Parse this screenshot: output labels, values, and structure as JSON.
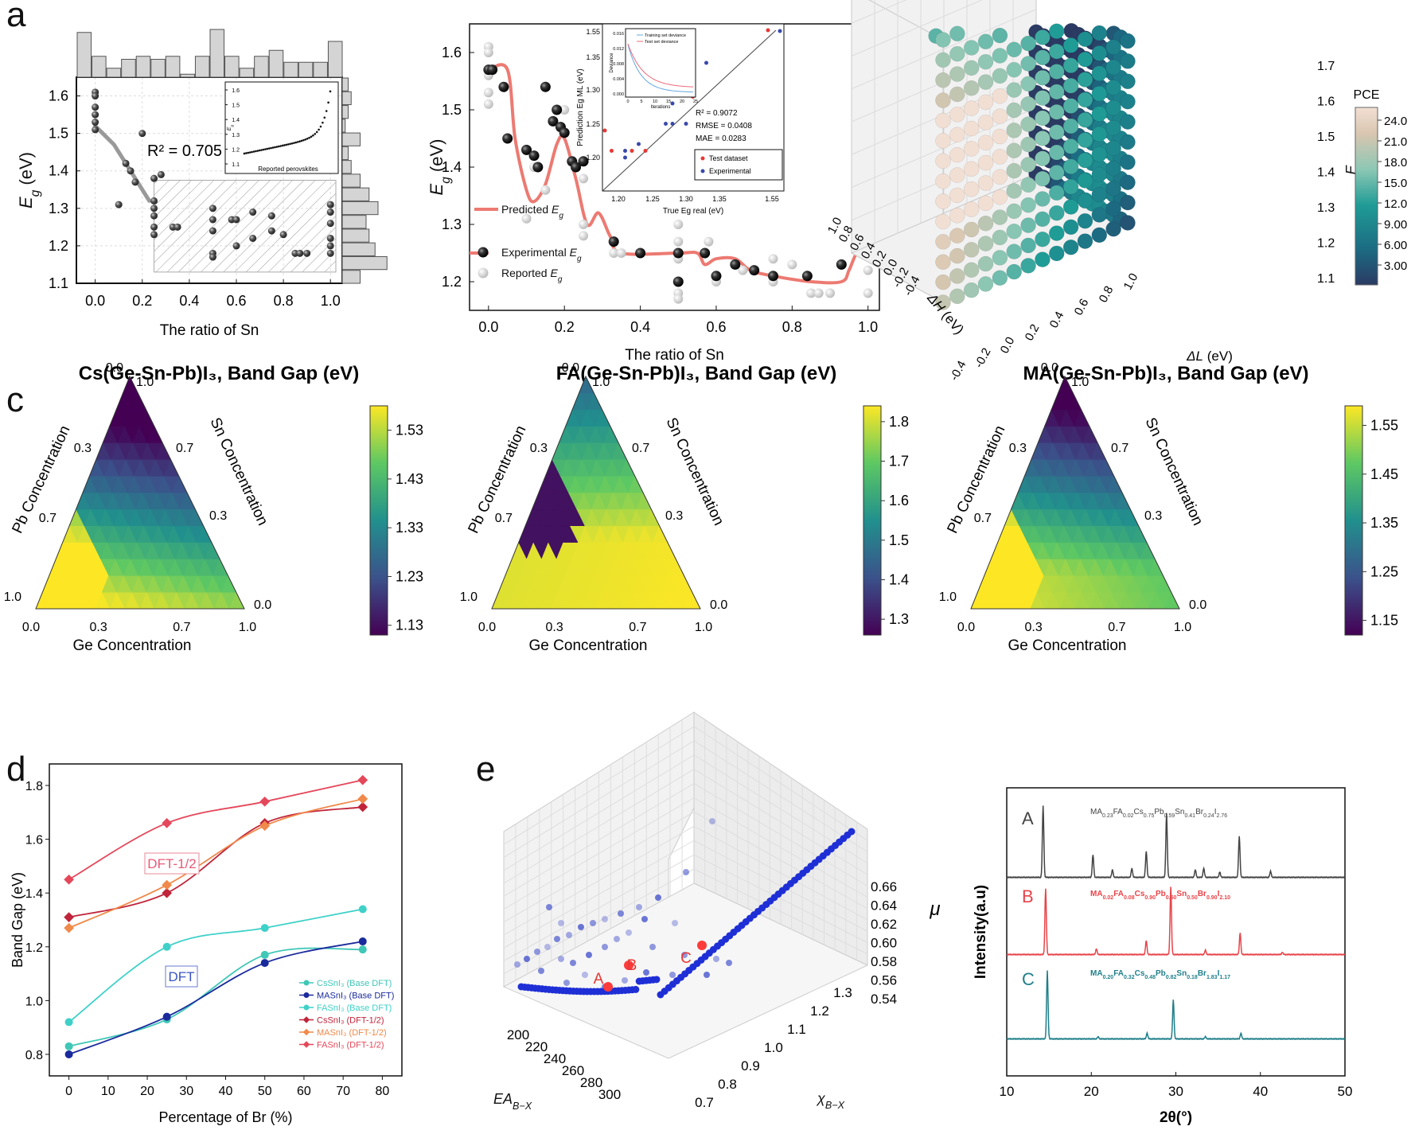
{
  "panel_labels": {
    "a": "a",
    "b": "b",
    "c": "c",
    "d": "d",
    "e": "e"
  },
  "colors": {
    "accent_red": "#e8736b",
    "scatter_gray": "#cfcfcf",
    "hist_fill": "#d4d4d4",
    "viridis": [
      "#440154",
      "#3b528b",
      "#21908d",
      "#5dc863",
      "#fde725"
    ],
    "pce_colormap": [
      "#2b3a63",
      "#1c6b82",
      "#1f9c96",
      "#8cc7b4",
      "#d8c6b0",
      "#f2dfd3"
    ]
  },
  "chart_data": [
    {
      "id": "a1",
      "type": "scatter",
      "xlabel": "The ratio of Sn",
      "ylabel": "E_g (eV)",
      "xlim": [
        -0.08,
        1.05
      ],
      "ylim": [
        1.1,
        1.65
      ],
      "xticks": [
        "0.0",
        "0.2",
        "0.4",
        "0.6",
        "0.8",
        "1.0"
      ],
      "yticks": [
        "1.1",
        "1.2",
        "1.3",
        "1.4",
        "1.5",
        "1.6"
      ],
      "annotation": "R² = 0.705",
      "points": [
        [
          0,
          1.61
        ],
        [
          0,
          1.6
        ],
        [
          0,
          1.57
        ],
        [
          0,
          1.55
        ],
        [
          0,
          1.53
        ],
        [
          0,
          1.51
        ],
        [
          0.1,
          1.31
        ],
        [
          0.13,
          1.42
        ],
        [
          0.15,
          1.4
        ],
        [
          0.17,
          1.37
        ],
        [
          0.2,
          1.5
        ],
        [
          0.25,
          1.38
        ],
        [
          0.25,
          1.32
        ],
        [
          0.25,
          1.3
        ],
        [
          0.25,
          1.28
        ],
        [
          0.25,
          1.25
        ],
        [
          0.25,
          1.23
        ],
        [
          0.28,
          1.39
        ],
        [
          0.33,
          1.25
        ],
        [
          0.35,
          1.25
        ],
        [
          0.5,
          1.3
        ],
        [
          0.5,
          1.27
        ],
        [
          0.5,
          1.24
        ],
        [
          0.5,
          1.18
        ],
        [
          0.5,
          1.17
        ],
        [
          0.58,
          1.27
        ],
        [
          0.6,
          1.27
        ],
        [
          0.6,
          1.2
        ],
        [
          0.67,
          1.29
        ],
        [
          0.67,
          1.22
        ],
        [
          0.75,
          1.28
        ],
        [
          0.75,
          1.24
        ],
        [
          0.8,
          1.23
        ],
        [
          0.85,
          1.18
        ],
        [
          0.87,
          1.18
        ],
        [
          0.9,
          1.18
        ],
        [
          1.0,
          1.31
        ],
        [
          1.0,
          1.29
        ],
        [
          1.0,
          1.26
        ],
        [
          1.0,
          1.22
        ],
        [
          1.0,
          1.2
        ],
        [
          1.0,
          1.18
        ]
      ],
      "fit_line": [
        [
          0,
          1.52
        ],
        [
          0.08,
          1.47
        ],
        [
          0.15,
          1.4
        ],
        [
          0.23,
          1.32
        ]
      ],
      "top_hist": [
        0.75,
        0.35,
        0.15,
        0.3,
        0.35,
        0.3,
        0.35,
        0.05,
        0.35,
        0.8,
        0.35,
        0.15,
        0.35,
        0.45,
        0.25,
        0.25,
        0.25,
        0.6
      ],
      "side_hist": [
        0.1,
        0.15,
        0.1,
        0.05,
        0.3,
        0.1,
        0.15,
        0.3,
        0.45,
        0.6,
        0.4,
        0.45,
        0.55,
        0.75,
        0.3
      ],
      "inset": {
        "xlabel": "Reported perovskites",
        "ylabel": "E_g (eV)",
        "yticks": [
          "1.1",
          "1.2",
          "1.3",
          "1.4",
          "1.5",
          "1.6"
        ],
        "points_count": 46
      }
    },
    {
      "id": "a2",
      "type": "line",
      "xlabel": "The ratio of Sn",
      "ylabel": "E_g (eV)",
      "xlim": [
        -0.05,
        1.03
      ],
      "ylim": [
        1.15,
        1.65
      ],
      "xticks": [
        "0.0",
        "0.2",
        "0.4",
        "0.6",
        "0.8",
        "1.0"
      ],
      "yticks": [
        "1.2",
        "1.3",
        "1.4",
        "1.5",
        "1.6"
      ],
      "legend": [
        "Predicted E_g",
        "Experimental E_g",
        "Reported E_g"
      ],
      "predicted": [
        [
          0,
          1.57
        ],
        [
          0.05,
          1.57
        ],
        [
          0.07,
          1.45
        ],
        [
          0.1,
          1.36
        ],
        [
          0.12,
          1.34
        ],
        [
          0.15,
          1.37
        ],
        [
          0.18,
          1.44
        ],
        [
          0.2,
          1.45
        ],
        [
          0.23,
          1.38
        ],
        [
          0.26,
          1.3
        ],
        [
          0.29,
          1.32
        ],
        [
          0.32,
          1.28
        ],
        [
          0.35,
          1.25
        ],
        [
          0.5,
          1.25
        ],
        [
          0.55,
          1.25
        ],
        [
          0.57,
          1.23
        ],
        [
          0.6,
          1.24
        ],
        [
          0.65,
          1.24
        ],
        [
          0.69,
          1.22
        ],
        [
          0.75,
          1.21
        ],
        [
          0.85,
          1.2
        ],
        [
          0.93,
          1.2
        ],
        [
          0.95,
          1.22
        ],
        [
          0.97,
          1.25
        ],
        [
          1.0,
          1.27
        ]
      ],
      "experimental": [
        [
          0,
          1.57
        ],
        [
          0.01,
          1.57
        ],
        [
          0.04,
          1.54
        ],
        [
          0.05,
          1.45
        ],
        [
          0.1,
          1.43
        ],
        [
          0.12,
          1.42
        ],
        [
          0.13,
          1.4
        ],
        [
          0.15,
          1.54
        ],
        [
          0.17,
          1.48
        ],
        [
          0.18,
          1.5
        ],
        [
          0.19,
          1.47
        ],
        [
          0.2,
          1.46
        ],
        [
          0.22,
          1.41
        ],
        [
          0.23,
          1.4
        ],
        [
          0.25,
          1.41
        ],
        [
          0.33,
          1.27
        ],
        [
          0.4,
          1.25
        ],
        [
          0.5,
          1.25
        ],
        [
          0.5,
          1.2
        ],
        [
          0.57,
          1.25
        ],
        [
          0.6,
          1.21
        ],
        [
          0.65,
          1.23
        ],
        [
          0.7,
          1.22
        ],
        [
          0.75,
          1.21
        ],
        [
          0.84,
          1.21
        ],
        [
          0.93,
          1.23
        ],
        [
          1.0,
          1.28
        ]
      ],
      "reported": [
        [
          0,
          1.61
        ],
        [
          0,
          1.6
        ],
        [
          0,
          1.56
        ],
        [
          0,
          1.53
        ],
        [
          0,
          1.51
        ],
        [
          0.1,
          1.31
        ],
        [
          0.12,
          1.4
        ],
        [
          0.15,
          1.36
        ],
        [
          0.2,
          1.5
        ],
        [
          0.25,
          1.38
        ],
        [
          0.25,
          1.3
        ],
        [
          0.25,
          1.28
        ],
        [
          0.33,
          1.25
        ],
        [
          0.35,
          1.25
        ],
        [
          0.5,
          1.3
        ],
        [
          0.5,
          1.27
        ],
        [
          0.5,
          1.24
        ],
        [
          0.5,
          1.18
        ],
        [
          0.5,
          1.17
        ],
        [
          0.58,
          1.27
        ],
        [
          0.6,
          1.2
        ],
        [
          0.67,
          1.22
        ],
        [
          0.75,
          1.24
        ],
        [
          0.75,
          1.2
        ],
        [
          0.8,
          1.23
        ],
        [
          0.85,
          1.18
        ],
        [
          0.87,
          1.18
        ],
        [
          0.9,
          1.18
        ],
        [
          1.0,
          1.31
        ],
        [
          1.0,
          1.26
        ],
        [
          1.0,
          1.22
        ],
        [
          1.0,
          1.18
        ]
      ],
      "inset": {
        "xlabel": "True E_g^real (eV)",
        "ylabel": "Prediction E_g^ML (eV)",
        "xticks": [
          "1.20",
          "1.25",
          "1.30",
          "1.35",
          "1.55"
        ],
        "yticks": [
          "1.20",
          "1.25",
          "1.30",
          "1.35",
          "1.55"
        ],
        "stats": [
          "R² = 0.9072",
          "RMSE = 0.0408",
          "MAE = 0.0283"
        ],
        "legend": [
          "Test dataset",
          "Experimental"
        ],
        "test_points": [
          [
            1.18,
            1.24
          ],
          [
            1.19,
            1.21
          ],
          [
            1.22,
            1.21
          ],
          [
            1.24,
            1.21
          ],
          [
            1.31,
            1.29
          ],
          [
            1.55,
            1.55
          ]
        ],
        "exp_points": [
          [
            1.21,
            1.2
          ],
          [
            1.21,
            1.21
          ],
          [
            1.23,
            1.22
          ],
          [
            1.27,
            1.25
          ],
          [
            1.28,
            1.25
          ],
          [
            1.28,
            1.28
          ],
          [
            1.3,
            1.25
          ],
          [
            1.3,
            1.31
          ],
          [
            1.33,
            1.34
          ],
          [
            1.57,
            1.55
          ]
        ],
        "sub_inset": {
          "legend": [
            "Training set deviance",
            "Test set deviance"
          ],
          "xlabel": "Iterations",
          "ylabel": "Deviance",
          "yticks": [
            "0.000",
            "0.004",
            "0.008",
            "0.012",
            "0.016"
          ],
          "xticks": [
            "0",
            "5",
            "10",
            "15",
            "20",
            "25"
          ]
        }
      }
    },
    {
      "id": "b",
      "type": "scatter",
      "zlabel": "E_g",
      "xlabel": "ΔL (eV)",
      "ylabel": "ΔH (eV)",
      "zticks": [
        "1.1",
        "1.2",
        "1.3",
        "1.4",
        "1.5",
        "1.6",
        "1.7"
      ],
      "xticks": [
        "-0.4",
        "-0.2",
        "0.0",
        "0.2",
        "0.4",
        "0.6",
        "0.8",
        "1.0"
      ],
      "yticks": [
        "-0.4",
        "-0.2",
        "0.0",
        "0.2",
        "0.4",
        "0.6",
        "0.8",
        "1.0"
      ],
      "colorbar": {
        "title": "PCE",
        "ticks": [
          "24.0",
          "21.0",
          "18.0",
          "15.0",
          "12.0",
          "9.00",
          "6.00",
          "3.00"
        ]
      }
    },
    {
      "id": "c1",
      "type": "heatmap",
      "title": "Cs(Ge-Sn-Pb)I₃, Band Gap (eV)",
      "axes": {
        "left": "Pb Concentration",
        "right": "Sn Concentration",
        "bottom": "Ge Concentration"
      },
      "ticks_bottom": [
        "0.0",
        "0.3",
        "0.7",
        "1.0"
      ],
      "ticks_left": [
        "0.0",
        "0.3",
        "0.7",
        "1.0"
      ],
      "ticks_right": [
        "1.0",
        "0.7",
        "0.3",
        "0.0"
      ],
      "colorbar": [
        "1.53",
        "1.43",
        "1.33",
        "1.23",
        "1.13"
      ],
      "vmin": 1.11,
      "vmax": 1.58
    },
    {
      "id": "c2",
      "type": "heatmap",
      "title": "FA(Ge-Sn-Pb)I₃, Band Gap (eV)",
      "axes": {
        "left": "Pb Concentration",
        "right": "Sn Concentration",
        "bottom": "Ge Concentration"
      },
      "ticks_bottom": [
        "0.0",
        "0.3",
        "0.7",
        "1.0"
      ],
      "ticks_left": [
        "0.0",
        "0.3",
        "0.7",
        "1.0"
      ],
      "ticks_right": [
        "1.0",
        "0.7",
        "0.3",
        "0.0"
      ],
      "colorbar": [
        "1.8",
        "1.7",
        "1.6",
        "1.5",
        "1.4",
        "1.3"
      ],
      "vmin": 1.26,
      "vmax": 1.84
    },
    {
      "id": "c3",
      "type": "heatmap",
      "title": "MA(Ge-Sn-Pb)I₃, Band Gap (eV)",
      "axes": {
        "left": "Pb Concentration",
        "right": "Sn Concentration",
        "bottom": "Ge Concentration"
      },
      "ticks_bottom": [
        "0.0",
        "0.3",
        "0.7",
        "1.0"
      ],
      "ticks_left": [
        "0.0",
        "0.3",
        "0.7",
        "1.0"
      ],
      "ticks_right": [
        "1.0",
        "0.7",
        "0.3",
        "0.0"
      ],
      "colorbar": [
        "1.55",
        "1.45",
        "1.35",
        "1.25",
        "1.15"
      ],
      "vmin": 1.12,
      "vmax": 1.59
    },
    {
      "id": "d",
      "type": "line",
      "xlabel": "Percentage of Br (%)",
      "ylabel": "Band Gap (eV)",
      "xlim": [
        -5,
        85
      ],
      "ylim": [
        0.72,
        1.88
      ],
      "xticks": [
        "0",
        "10",
        "20",
        "30",
        "40",
        "50",
        "60",
        "70",
        "80"
      ],
      "yticks": [
        "0.8",
        "1.0",
        "1.2",
        "1.4",
        "1.6",
        "1.8"
      ],
      "annotations": [
        "DFT-1/2",
        "DFT"
      ],
      "x": [
        0,
        25,
        50,
        75
      ],
      "series": [
        {
          "name": "CsSnI₃ (Base DFT)",
          "color": "#3fc7b7",
          "marker": "circle",
          "values": [
            0.83,
            0.93,
            1.17,
            1.19
          ]
        },
        {
          "name": "MASnI₃ (Base DFT)",
          "color": "#1a2a9c",
          "marker": "circle",
          "values": [
            0.8,
            0.94,
            1.14,
            1.22
          ]
        },
        {
          "name": "FASnI₃ (Base DFT)",
          "color": "#3fd1c8",
          "marker": "circle",
          "values": [
            0.92,
            1.2,
            1.27,
            1.34
          ]
        },
        {
          "name": "CsSnI₃ (DFT-1/2)",
          "color": "#c0243a",
          "marker": "diamond",
          "values": [
            1.31,
            1.4,
            1.66,
            1.72
          ]
        },
        {
          "name": "MASnI₃ (DFT-1/2)",
          "color": "#f0894a",
          "marker": "diamond",
          "values": [
            1.27,
            1.43,
            1.65,
            1.75
          ]
        },
        {
          "name": "FASnI₃ (DFT-1/2)",
          "color": "#e5475a",
          "marker": "diamond",
          "values": [
            1.45,
            1.66,
            1.74,
            1.82
          ]
        }
      ]
    },
    {
      "id": "e1",
      "type": "scatter",
      "xlabel": "EA_{B−X}",
      "ylabel": "χ_{B−X}",
      "zlabel": "μ",
      "xticks": [
        "200",
        "220",
        "240",
        "260",
        "280",
        "300"
      ],
      "yticks": [
        "0.7",
        "0.8",
        "0.9",
        "1.0",
        "1.1",
        "1.2",
        "1.3"
      ],
      "zticks": [
        "0.54",
        "0.56",
        "0.58",
        "0.60",
        "0.62",
        "0.64",
        "0.66"
      ],
      "labels": [
        "A",
        "B",
        "C"
      ]
    },
    {
      "id": "e2",
      "type": "line",
      "xlabel": "2θ(°)",
      "ylabel": "Intensity(a.u)",
      "xlim": [
        10,
        50
      ],
      "xticks": [
        "10",
        "20",
        "30",
        "40",
        "50"
      ],
      "series": [
        {
          "name": "A",
          "color": "#444444",
          "formula": [
            "MA",
            "0.23",
            "FA",
            "0.02",
            "Cs",
            "0.75",
            "Pb",
            "0.59",
            "Sn",
            "0.41",
            "Br",
            "0.24",
            "I",
            "2.76"
          ],
          "peaks": [
            [
              14.3,
              0.95
            ],
            [
              20.2,
              0.3
            ],
            [
              22.5,
              0.1
            ],
            [
              24.8,
              0.12
            ],
            [
              26.5,
              0.35
            ],
            [
              28.9,
              0.85
            ],
            [
              32.3,
              0.1
            ],
            [
              33.3,
              0.12
            ],
            [
              35.2,
              0.07
            ],
            [
              37.5,
              0.55
            ],
            [
              41.2,
              0.08
            ]
          ]
        },
        {
          "name": "B",
          "color": "#e8444a",
          "formula": [
            "MA",
            "0.02",
            "FA",
            "0.08",
            "Cs",
            "0.90",
            "Pb",
            "0.50",
            "Sn",
            "0.50",
            "Br",
            "0.90",
            "I",
            "2.10"
          ],
          "peaks": [
            [
              14.6,
              0.92
            ],
            [
              20.6,
              0.08
            ],
            [
              26.5,
              0.2
            ],
            [
              29.4,
              0.95
            ],
            [
              33.5,
              0.06
            ],
            [
              37.6,
              0.3
            ],
            [
              42.6,
              0.03
            ]
          ]
        },
        {
          "name": "C",
          "color": "#1f7f8a",
          "formula": [
            "MA",
            "0.20",
            "FA",
            "0.32",
            "Cs",
            "0.48",
            "Pb",
            "0.82",
            "Sn",
            "0.18",
            "Br",
            "1.83",
            "I",
            "1.17"
          ],
          "peaks": [
            [
              14.8,
              0.95
            ],
            [
              20.8,
              0.03
            ],
            [
              26.6,
              0.08
            ],
            [
              29.7,
              0.55
            ],
            [
              33.5,
              0.03
            ],
            [
              37.7,
              0.08
            ]
          ]
        }
      ]
    }
  ]
}
